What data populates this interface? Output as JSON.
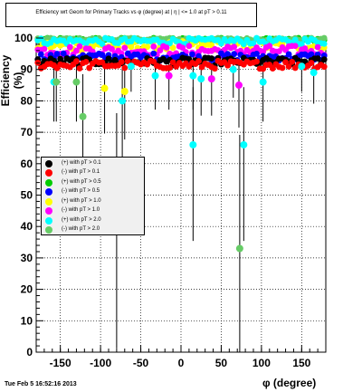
{
  "chart_data": {
    "type": "scatter",
    "title": "Efficiency wrt Geom for Primary Tracks vs φ (degree) at |  η | <= 1.0 at pT > 0.11",
    "xlabel": "φ (degree)",
    "ylabel": "Efficiency (%)",
    "xlim": [
      -180,
      180
    ],
    "ylim": [
      0,
      100
    ],
    "x_ticks": [
      "-150",
      "-100",
      "-50",
      "0",
      "50",
      "100",
      "150"
    ],
    "y_ticks": [
      "0",
      "10",
      "20",
      "30",
      "40",
      "50",
      "60",
      "70",
      "80",
      "90",
      "100"
    ],
    "grid": true,
    "legend_position": "middle-left",
    "series": [
      {
        "name": "(+) with pT > 0.1",
        "color": "#000000"
      },
      {
        "name": "(-) with pT > 0.1",
        "color": "#ff0000"
      },
      {
        "name": "(+) with pT > 0.5",
        "color": "#00cc00"
      },
      {
        "name": "(-) with pT > 0.5",
        "color": "#0000ff"
      },
      {
        "name": "(+) with pT > 1.0",
        "color": "#ffff00"
      },
      {
        "name": "(-) with pT > 1.0",
        "color": "#ff00ff"
      },
      {
        "name": "(+) with pT > 2.0",
        "color": "#00ffff"
      },
      {
        "name": "(-) with pT > 2.0",
        "color": "#66cc66"
      }
    ],
    "outliers": [
      {
        "series": 6,
        "x": -158,
        "y": 86
      },
      {
        "series": 7,
        "x": -155,
        "y": 86
      },
      {
        "series": 7,
        "x": -130,
        "y": 86
      },
      {
        "series": 7,
        "x": -122,
        "y": 75
      },
      {
        "series": 4,
        "x": -95,
        "y": 84
      },
      {
        "series": 6,
        "x": -80,
        "y": 48
      },
      {
        "series": 6,
        "x": -73,
        "y": 80
      },
      {
        "series": 4,
        "x": -70,
        "y": 83
      },
      {
        "series": 6,
        "x": -62,
        "y": 91
      },
      {
        "series": 6,
        "x": -32,
        "y": 88
      },
      {
        "series": 5,
        "x": -15,
        "y": 88
      },
      {
        "series": 6,
        "x": 15,
        "y": 88
      },
      {
        "series": 6,
        "x": 15,
        "y": 66
      },
      {
        "series": 6,
        "x": 25,
        "y": 87
      },
      {
        "series": 5,
        "x": 38,
        "y": 87
      },
      {
        "series": 6,
        "x": 65,
        "y": 90
      },
      {
        "series": 5,
        "x": 72,
        "y": 85
      },
      {
        "series": 7,
        "x": 73,
        "y": 33
      },
      {
        "series": 6,
        "x": 78,
        "y": 66
      },
      {
        "series": 6,
        "x": 102,
        "y": 86
      },
      {
        "series": 6,
        "x": 150,
        "y": 91
      },
      {
        "series": 6,
        "x": 165,
        "y": 89
      }
    ]
  },
  "footer": "Tue Feb  5 16:52:16 2013"
}
